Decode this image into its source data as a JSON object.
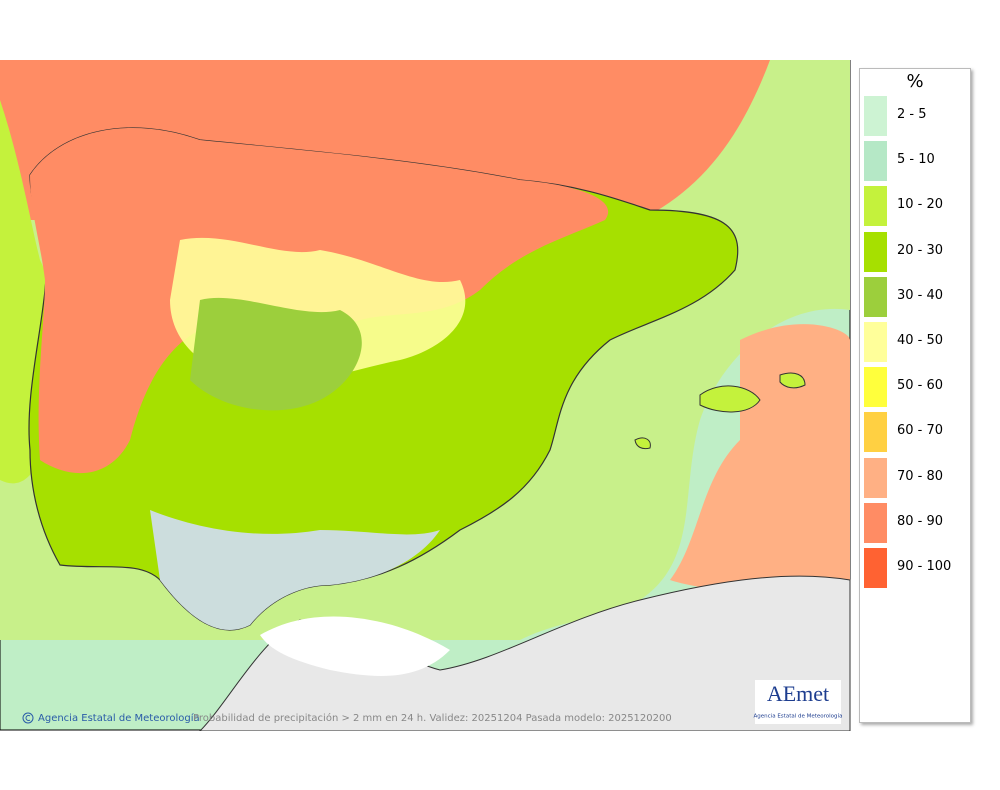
{
  "legend": {
    "title": "%",
    "items": [
      {
        "label": "2 - 5",
        "color": "#cdf3d3"
      },
      {
        "label": "5 - 10",
        "color": "#b5e8c6"
      },
      {
        "label": "10 - 20",
        "color": "#c4f23c"
      },
      {
        "label": "20 - 30",
        "color": "#a6e000"
      },
      {
        "label": "30 - 40",
        "color": "#9ccf3c"
      },
      {
        "label": "40 - 50",
        "color": "#ffff9a"
      },
      {
        "label": "50 - 60",
        "color": "#ffff3c"
      },
      {
        "label": "60 - 70",
        "color": "#ffd042"
      },
      {
        "label": "70 - 80",
        "color": "#ffb084"
      },
      {
        "label": "80 - 90",
        "color": "#ff8c64"
      },
      {
        "label": "90 - 100",
        "color": "#ff6232"
      }
    ]
  },
  "footer": {
    "credit": "Agencia Estatal de Meteorología",
    "caption": "Probabilidad de precipitación > 2 mm en 24 h. Validez: 20251204 Pasada modelo: 2025120200"
  },
  "logo": {
    "name": "AEmet",
    "subtitle": "Agencia Estatal de Meteorología"
  }
}
